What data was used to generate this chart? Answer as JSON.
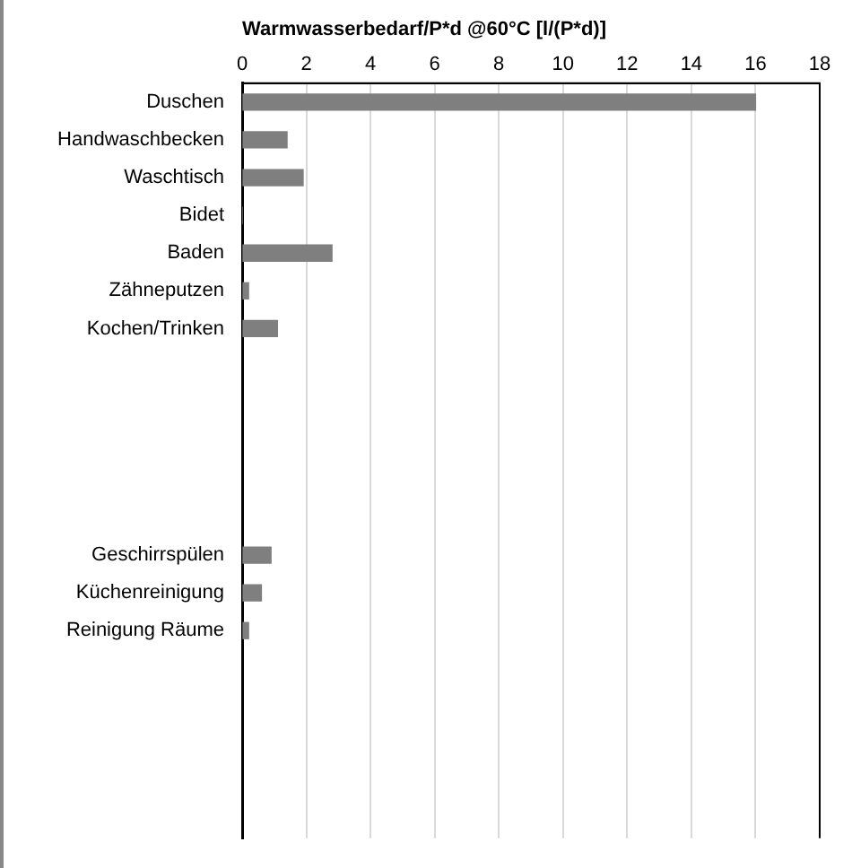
{
  "chart_data": {
    "type": "bar",
    "orientation": "horizontal",
    "xlabel": "Warmwasserbedarf/P*d @60°C [l/(P*d)]",
    "categories": [
      "Duschen",
      "Handwaschbecken",
      "Waschtisch",
      "Bidet",
      "Baden",
      "Zähneputzen",
      "Kochen/Trinken",
      null,
      null,
      null,
      null,
      null,
      "Geschirrspülen",
      "Küchenreinigung",
      "Reinigung Räume",
      null,
      null,
      null,
      null,
      null
    ],
    "values": [
      16.0,
      1.4,
      1.9,
      0,
      2.8,
      0.2,
      1.1,
      null,
      null,
      null,
      null,
      null,
      0.9,
      0.6,
      0.2,
      null,
      null,
      null,
      null,
      null
    ],
    "color": "#7f7f7f",
    "xlim": [
      0,
      18
    ],
    "xticks": [
      0,
      2,
      4,
      6,
      8,
      10,
      12,
      14,
      16,
      18
    ],
    "grid": "x",
    "legend": false
  }
}
